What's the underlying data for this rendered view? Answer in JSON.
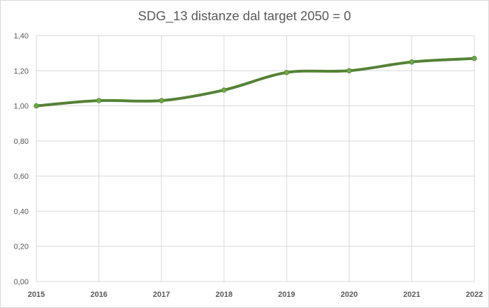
{
  "chart_data": {
    "type": "line",
    "title": "SDG_13 distanze dal target 2050 = 0",
    "xlabel": "",
    "ylabel": "",
    "x": [
      "2015",
      "2016",
      "2017",
      "2018",
      "2019",
      "2020",
      "2021",
      "2022"
    ],
    "series": [
      {
        "values": [
          1.0,
          1.03,
          1.03,
          1.09,
          1.19,
          1.2,
          1.25,
          1.27
        ],
        "color": "#548235",
        "marker_color": "#70ad47"
      }
    ],
    "ylim": [
      0,
      1.4
    ],
    "yticks": [
      0,
      0.2,
      0.4,
      0.6,
      0.8,
      1.0,
      1.2,
      1.4
    ],
    "ytick_labels": [
      "0,00",
      "0,20",
      "0,40",
      "0,60",
      "0,80",
      "1,00",
      "1,20",
      "1,40"
    ],
    "grid": true,
    "smooth": true,
    "legend": "none"
  }
}
